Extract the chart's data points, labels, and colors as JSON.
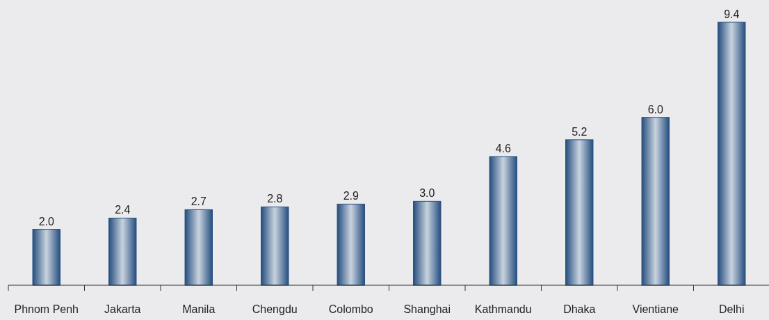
{
  "chart_data": {
    "type": "bar",
    "categories": [
      "Phnom Penh",
      "Jakarta",
      "Manila",
      "Chengdu",
      "Colombo",
      "Shanghai",
      "Kathmandu",
      "Dhaka",
      "Vientiane",
      "Delhi"
    ],
    "values": [
      2.0,
      2.4,
      2.7,
      2.8,
      2.9,
      3.0,
      4.6,
      5.2,
      6.0,
      9.4
    ],
    "value_labels": [
      "2.0",
      "2.4",
      "2.7",
      "2.8",
      "2.9",
      "3.0",
      "4.6",
      "5.2",
      "6.0",
      "9.4"
    ],
    "color": "#254e7f"
  }
}
